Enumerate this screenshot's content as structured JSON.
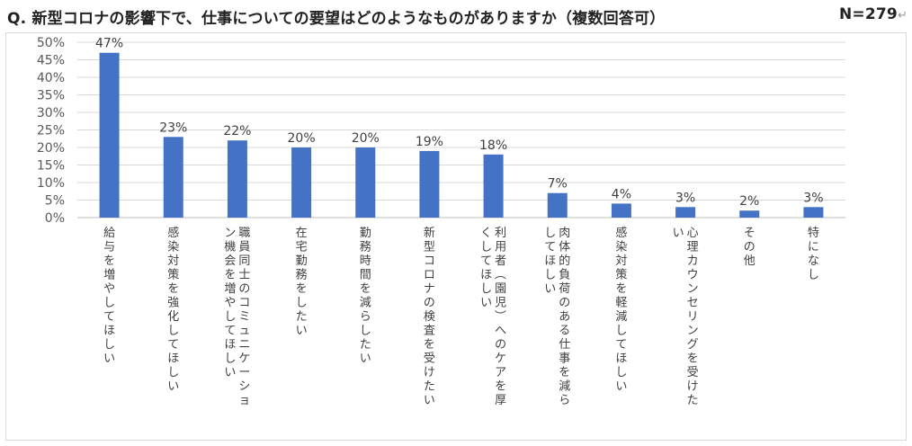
{
  "title": "Q. 新型コロナの影響下で、仕事についての要望はどのようなものがありますか（複数回答可）",
  "n_label": "N=279",
  "n_mark": "↵",
  "chart_data": {
    "type": "bar",
    "categories": [
      [
        "給与を増やしてほしい"
      ],
      [
        "感染対策を強化してほしい"
      ],
      [
        "職員同士のコミュニケーショ",
        "ン機会を増やしてほしい"
      ],
      [
        "在宅勤務をしたい"
      ],
      [
        "勤務時間を減らしたい"
      ],
      [
        "新型コロナの検査を受けたい"
      ],
      [
        "利用者（園児）へのケアを厚",
        "くしてほしい"
      ],
      [
        "肉体的負荷のある仕事を減ら",
        "してほしい"
      ],
      [
        "感染対策を軽減してほしい"
      ],
      [
        "心理カウンセリングを受けた",
        "い"
      ],
      [
        "その他"
      ],
      [
        "特になし"
      ]
    ],
    "values": [
      47,
      23,
      22,
      20,
      20,
      19,
      18,
      7,
      4,
      3,
      2,
      3
    ],
    "data_labels": [
      "47%",
      "23%",
      "22%",
      "20%",
      "20%",
      "19%",
      "18%",
      "7%",
      "4%",
      "3%",
      "2%",
      "3%"
    ],
    "ylim": [
      0,
      50
    ],
    "yticks": [
      "0%",
      "5%",
      "10%",
      "15%",
      "20%",
      "25%",
      "30%",
      "35%",
      "40%",
      "45%",
      "50%"
    ],
    "bar_color": "#4472C4",
    "grid": true
  }
}
